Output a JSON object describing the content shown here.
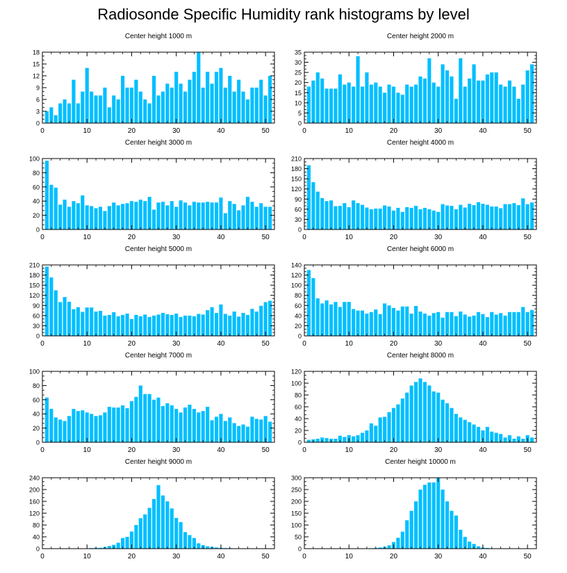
{
  "title": "Radiosonde Specific Humidity rank histograms by level",
  "bar_color": "#00bfff",
  "chart_data": [
    {
      "type": "bar",
      "title": "Center height 1000 m",
      "xlim": [
        0,
        52
      ],
      "ylim": [
        0,
        18
      ],
      "xticks": [
        0,
        10,
        20,
        30,
        40,
        50
      ],
      "yticks": [
        0,
        3,
        6,
        9,
        12,
        15,
        18
      ],
      "values": [
        3,
        4,
        2,
        5,
        6,
        5,
        11,
        5,
        8,
        14,
        8,
        7,
        7,
        9,
        4,
        7,
        6,
        12,
        9,
        9,
        11,
        8,
        6,
        5,
        12,
        7,
        8,
        10,
        9,
        13,
        10,
        8,
        11,
        13,
        18,
        9,
        13,
        10,
        13,
        14,
        9,
        12,
        8,
        11,
        8,
        6,
        9,
        9,
        11,
        7,
        12
      ]
    },
    {
      "type": "bar",
      "title": "Center height 2000 m",
      "xlim": [
        0,
        52
      ],
      "ylim": [
        0,
        35
      ],
      "xticks": [
        0,
        10,
        20,
        30,
        40,
        50
      ],
      "yticks": [
        0,
        5,
        10,
        15,
        20,
        25,
        30,
        35
      ],
      "values": [
        18,
        21,
        25,
        22,
        17,
        17,
        17,
        24,
        19,
        20,
        18,
        33,
        18,
        25,
        19,
        20,
        18,
        15,
        19,
        18,
        15,
        14,
        19,
        18,
        19,
        23,
        22,
        32,
        20,
        18,
        29,
        26,
        23,
        12,
        32,
        18,
        22,
        29,
        21,
        21,
        24,
        25,
        25,
        19,
        18,
        21,
        18,
        12,
        19,
        26,
        29
      ]
    },
    {
      "type": "bar",
      "title": "Center height 3000 m",
      "xlim": [
        0,
        52
      ],
      "ylim": [
        0,
        100
      ],
      "xticks": [
        0,
        10,
        20,
        30,
        40,
        50
      ],
      "yticks": [
        0,
        20,
        40,
        60,
        80,
        100
      ],
      "values": [
        97,
        63,
        59,
        35,
        42,
        32,
        40,
        37,
        48,
        34,
        33,
        30,
        32,
        26,
        33,
        38,
        34,
        36,
        37,
        40,
        39,
        42,
        40,
        46,
        28,
        38,
        39,
        34,
        40,
        32,
        41,
        38,
        34,
        39,
        38,
        38,
        39,
        38,
        38,
        45,
        23,
        40,
        36,
        27,
        34,
        46,
        39,
        32,
        37,
        32,
        32
      ]
    },
    {
      "type": "bar",
      "title": "Center height 4000 m",
      "xlim": [
        0,
        52
      ],
      "ylim": [
        0,
        210
      ],
      "xticks": [
        0,
        10,
        20,
        30,
        40,
        50
      ],
      "yticks": [
        0,
        30,
        60,
        90,
        120,
        150,
        180,
        210
      ],
      "values": [
        190,
        140,
        112,
        93,
        84,
        86,
        69,
        70,
        78,
        66,
        86,
        78,
        73,
        65,
        60,
        62,
        62,
        71,
        68,
        56,
        64,
        52,
        66,
        64,
        70,
        60,
        64,
        60,
        56,
        52,
        75,
        71,
        70,
        60,
        73,
        65,
        76,
        72,
        81,
        76,
        73,
        68,
        68,
        63,
        75,
        75,
        78,
        72,
        92,
        75,
        80
      ]
    },
    {
      "type": "bar",
      "title": "Center height 5000 m",
      "xlim": [
        0,
        52
      ],
      "ylim": [
        0,
        210
      ],
      "xticks": [
        0,
        10,
        20,
        30,
        40,
        50
      ],
      "yticks": [
        0,
        30,
        60,
        90,
        120,
        150,
        180,
        210
      ],
      "values": [
        205,
        173,
        135,
        100,
        115,
        101,
        79,
        85,
        71,
        84,
        84,
        72,
        74,
        60,
        62,
        70,
        58,
        62,
        66,
        50,
        62,
        58,
        63,
        56,
        60,
        63,
        68,
        64,
        62,
        66,
        56,
        60,
        60,
        58,
        65,
        63,
        76,
        85,
        68,
        93,
        65,
        60,
        72,
        57,
        68,
        62,
        80,
        72,
        89,
        100,
        104
      ]
    },
    {
      "type": "bar",
      "title": "Center height 6000 m",
      "xlim": [
        0,
        52
      ],
      "ylim": [
        0,
        140
      ],
      "xticks": [
        0,
        10,
        20,
        30,
        40,
        50
      ],
      "yticks": [
        0,
        20,
        40,
        60,
        80,
        100,
        120,
        140
      ],
      "values": [
        130,
        114,
        74,
        64,
        70,
        62,
        67,
        57,
        67,
        67,
        53,
        50,
        50,
        44,
        47,
        52,
        43,
        64,
        60,
        55,
        50,
        58,
        58,
        44,
        59,
        48,
        44,
        40,
        45,
        47,
        36,
        47,
        47,
        39,
        48,
        42,
        38,
        40,
        47,
        43,
        37,
        47,
        42,
        45,
        40,
        47,
        47,
        47,
        57,
        47,
        51
      ]
    },
    {
      "type": "bar",
      "title": "Center height 7000 m",
      "xlim": [
        0,
        52
      ],
      "ylim": [
        0,
        100
      ],
      "xticks": [
        0,
        10,
        20,
        30,
        40,
        50
      ],
      "yticks": [
        0,
        20,
        40,
        60,
        80,
        100
      ],
      "values": [
        63,
        47,
        35,
        32,
        30,
        37,
        47,
        44,
        45,
        42,
        40,
        37,
        38,
        42,
        50,
        49,
        49,
        52,
        48,
        58,
        64,
        80,
        68,
        68,
        60,
        63,
        51,
        55,
        52,
        47,
        42,
        49,
        53,
        47,
        42,
        44,
        50,
        31,
        36,
        40,
        30,
        35,
        27,
        23,
        25,
        22,
        36,
        33,
        32,
        37,
        29
      ]
    },
    {
      "type": "bar",
      "title": "Center height 8000 m",
      "xlim": [
        0,
        52
      ],
      "ylim": [
        0,
        120
      ],
      "xticks": [
        0,
        10,
        20,
        30,
        40,
        50
      ],
      "yticks": [
        0,
        20,
        40,
        60,
        80,
        100,
        120
      ],
      "values": [
        4,
        5,
        6,
        8,
        7,
        6,
        6,
        11,
        9,
        12,
        10,
        12,
        16,
        20,
        32,
        28,
        42,
        43,
        51,
        58,
        64,
        74,
        84,
        96,
        102,
        108,
        102,
        96,
        86,
        84,
        72,
        66,
        58,
        48,
        42,
        38,
        34,
        30,
        26,
        20,
        26,
        18,
        16,
        14,
        8,
        12,
        6,
        10,
        6,
        12,
        8
      ]
    },
    {
      "type": "bar",
      "title": "Center height 9000 m",
      "xlim": [
        0,
        52
      ],
      "ylim": [
        0,
        240
      ],
      "xticks": [
        0,
        10,
        20,
        30,
        40,
        50
      ],
      "yticks": [
        0,
        40,
        80,
        120,
        160,
        200,
        240
      ],
      "values": [
        0,
        0,
        0,
        0,
        0,
        0,
        0,
        0,
        1,
        1,
        2,
        3,
        3,
        5,
        9,
        13,
        20,
        36,
        40,
        58,
        80,
        103,
        116,
        138,
        168,
        215,
        180,
        160,
        136,
        104,
        90,
        56,
        46,
        36,
        18,
        12,
        8,
        6,
        4,
        3,
        2,
        2,
        1,
        1,
        1,
        0,
        0,
        0,
        0,
        0,
        0
      ]
    },
    {
      "type": "bar",
      "title": "Center height 10000 m",
      "xlim": [
        0,
        52
      ],
      "ylim": [
        0,
        300
      ],
      "xticks": [
        0,
        10,
        20,
        30,
        40,
        50
      ],
      "yticks": [
        0,
        50,
        100,
        150,
        200,
        250,
        300
      ],
      "values": [
        0,
        0,
        0,
        0,
        0,
        0,
        0,
        0,
        0,
        0,
        0,
        0,
        0,
        1,
        2,
        3,
        5,
        8,
        14,
        28,
        46,
        72,
        120,
        160,
        200,
        250,
        270,
        280,
        280,
        298,
        250,
        200,
        160,
        140,
        80,
        50,
        30,
        20,
        10,
        5,
        3,
        2,
        1,
        1,
        1,
        0,
        0,
        0,
        0,
        0,
        0
      ]
    }
  ]
}
